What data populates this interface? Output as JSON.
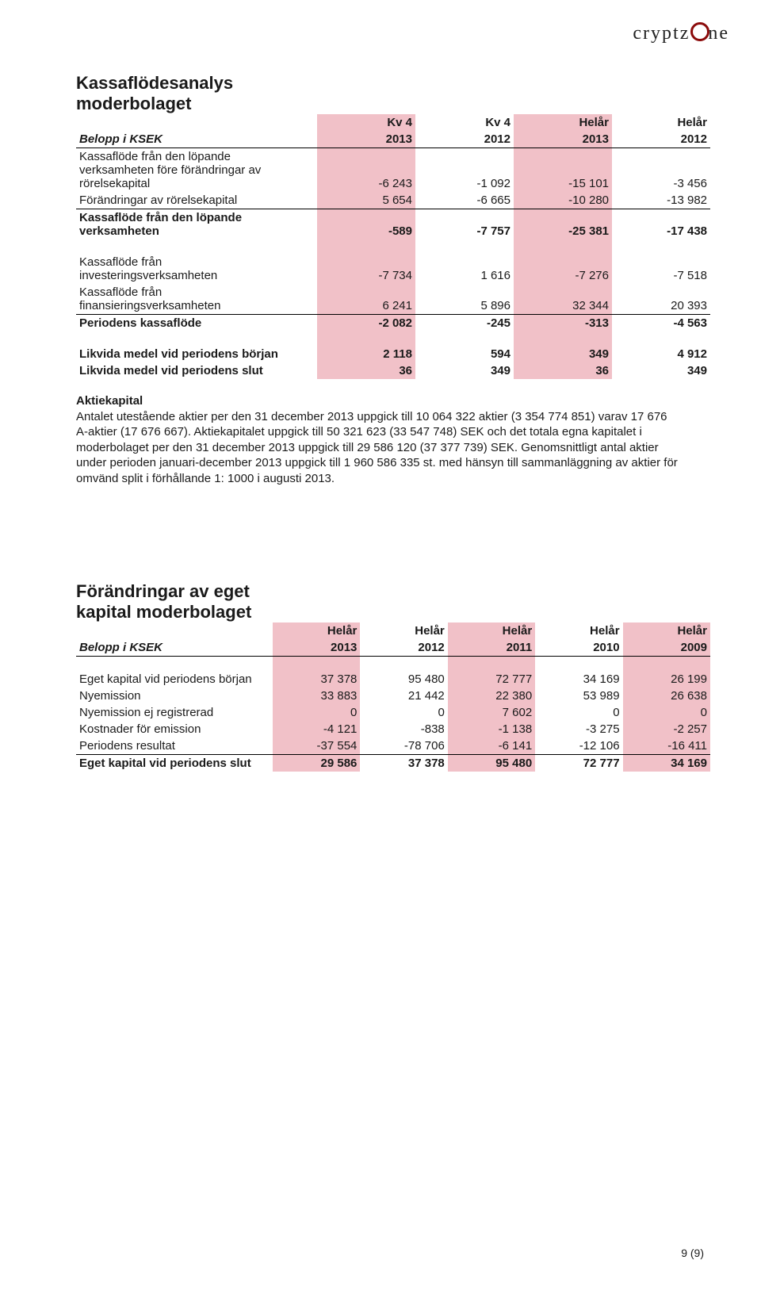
{
  "logo": {
    "part1": "cryptz",
    "part2": "ne"
  },
  "highlight_color": "#f1c1c8",
  "table1": {
    "title_lines": [
      "Kassaflödesanalys",
      "moderbolaget"
    ],
    "header_top": [
      "Kv 4",
      "Kv 4",
      "Helår",
      "Helår"
    ],
    "subheader_label": "Belopp i KSEK",
    "header_years": [
      "2013",
      "2012",
      "2013",
      "2012"
    ],
    "rows_block_a": [
      {
        "label_lines": [
          "Kassaflöde från den löpande",
          "verksamheten före förändringar av",
          "rörelsekapital"
        ],
        "values": [
          "-6 243",
          "-1 092",
          "-15 101",
          "-3 456"
        ]
      },
      {
        "label_lines": [
          "Förändringar av rörelsekapital"
        ],
        "values": [
          "5 654",
          "-6 665",
          "-10 280",
          "-13 982"
        ]
      },
      {
        "label_lines": [
          "Kassaflöde från den löpande",
          "verksamheten"
        ],
        "bold": true,
        "values": [
          "-589",
          "-7 757",
          "-25 381",
          "-17 438"
        ]
      }
    ],
    "rows_block_b": [
      {
        "label_lines": [
          "Kassaflöde från",
          "investeringsverksamheten"
        ],
        "values": [
          "-7 734",
          "1 616",
          "-7 276",
          "-7 518"
        ]
      },
      {
        "label_lines": [
          "Kassaflöde från",
          "finansieringsverksamheten"
        ],
        "values": [
          "6 241",
          "5 896",
          "32 344",
          "20 393"
        ]
      },
      {
        "label_lines": [
          "Periodens kassaflöde"
        ],
        "bold": true,
        "values": [
          "-2 082",
          "-245",
          "-313",
          "-4 563"
        ]
      }
    ],
    "rows_block_c": [
      {
        "label_lines": [
          "Likvida medel vid periodens början"
        ],
        "bold": true,
        "values": [
          "2 118",
          "594",
          "349",
          "4 912"
        ]
      },
      {
        "label_lines": [
          "Likvida medel vid periodens slut"
        ],
        "bold": true,
        "values": [
          "36",
          "349",
          "36",
          "349"
        ]
      }
    ]
  },
  "aktiekapital": {
    "title": "Aktiekapital",
    "text": "Antalet utestående aktier per den 31 december 2013 uppgick till 10 064 322 aktier (3 354 774 851) varav 17 676 A-aktier (17 676 667). Aktiekapitalet uppgick till 50 321 623 (33 547 748) SEK och det totala egna kapitalet i moderbolaget per den 31 december 2013 uppgick till 29 586 120 (37 377 739) SEK. Genomsnittligt antal aktier under perioden januari-december 2013 uppgick till 1 960 586 335 st. med hänsyn till sammanläggning av aktier för omvänd split i förhållande 1: 1000 i augusti 2013."
  },
  "table2": {
    "title_lines": [
      "Förändringar av eget",
      "kapital moderbolaget"
    ],
    "header_top": [
      "Helår",
      "Helår",
      "Helår",
      "Helår",
      "Helår"
    ],
    "subheader_label": "Belopp i KSEK",
    "header_years": [
      "2013",
      "2012",
      "2011",
      "2010",
      "2009"
    ],
    "rows": [
      {
        "label": "Eget kapital vid periodens början",
        "values": [
          "37 378",
          "95 480",
          "72 777",
          "34 169",
          "26 199"
        ]
      },
      {
        "label": "Nyemission",
        "values": [
          "33 883",
          "21 442",
          "22 380",
          "53 989",
          "26 638"
        ]
      },
      {
        "label": "Nyemission ej registrerad",
        "values": [
          "0",
          "0",
          "7 602",
          "0",
          "0"
        ]
      },
      {
        "label": "Kostnader för emission",
        "values": [
          "-4 121",
          "-838",
          "-1 138",
          "-3 275",
          "-2 257"
        ]
      },
      {
        "label": "Periodens resultat",
        "values": [
          "-37 554",
          "-78 706",
          "-6 141",
          "-12 106",
          "-16 411"
        ]
      }
    ],
    "total": {
      "label": "Eget kapital vid periodens slut",
      "values": [
        "29 586",
        "37 378",
        "95 480",
        "72 777",
        "34 169"
      ]
    }
  },
  "footer": "9 (9)"
}
